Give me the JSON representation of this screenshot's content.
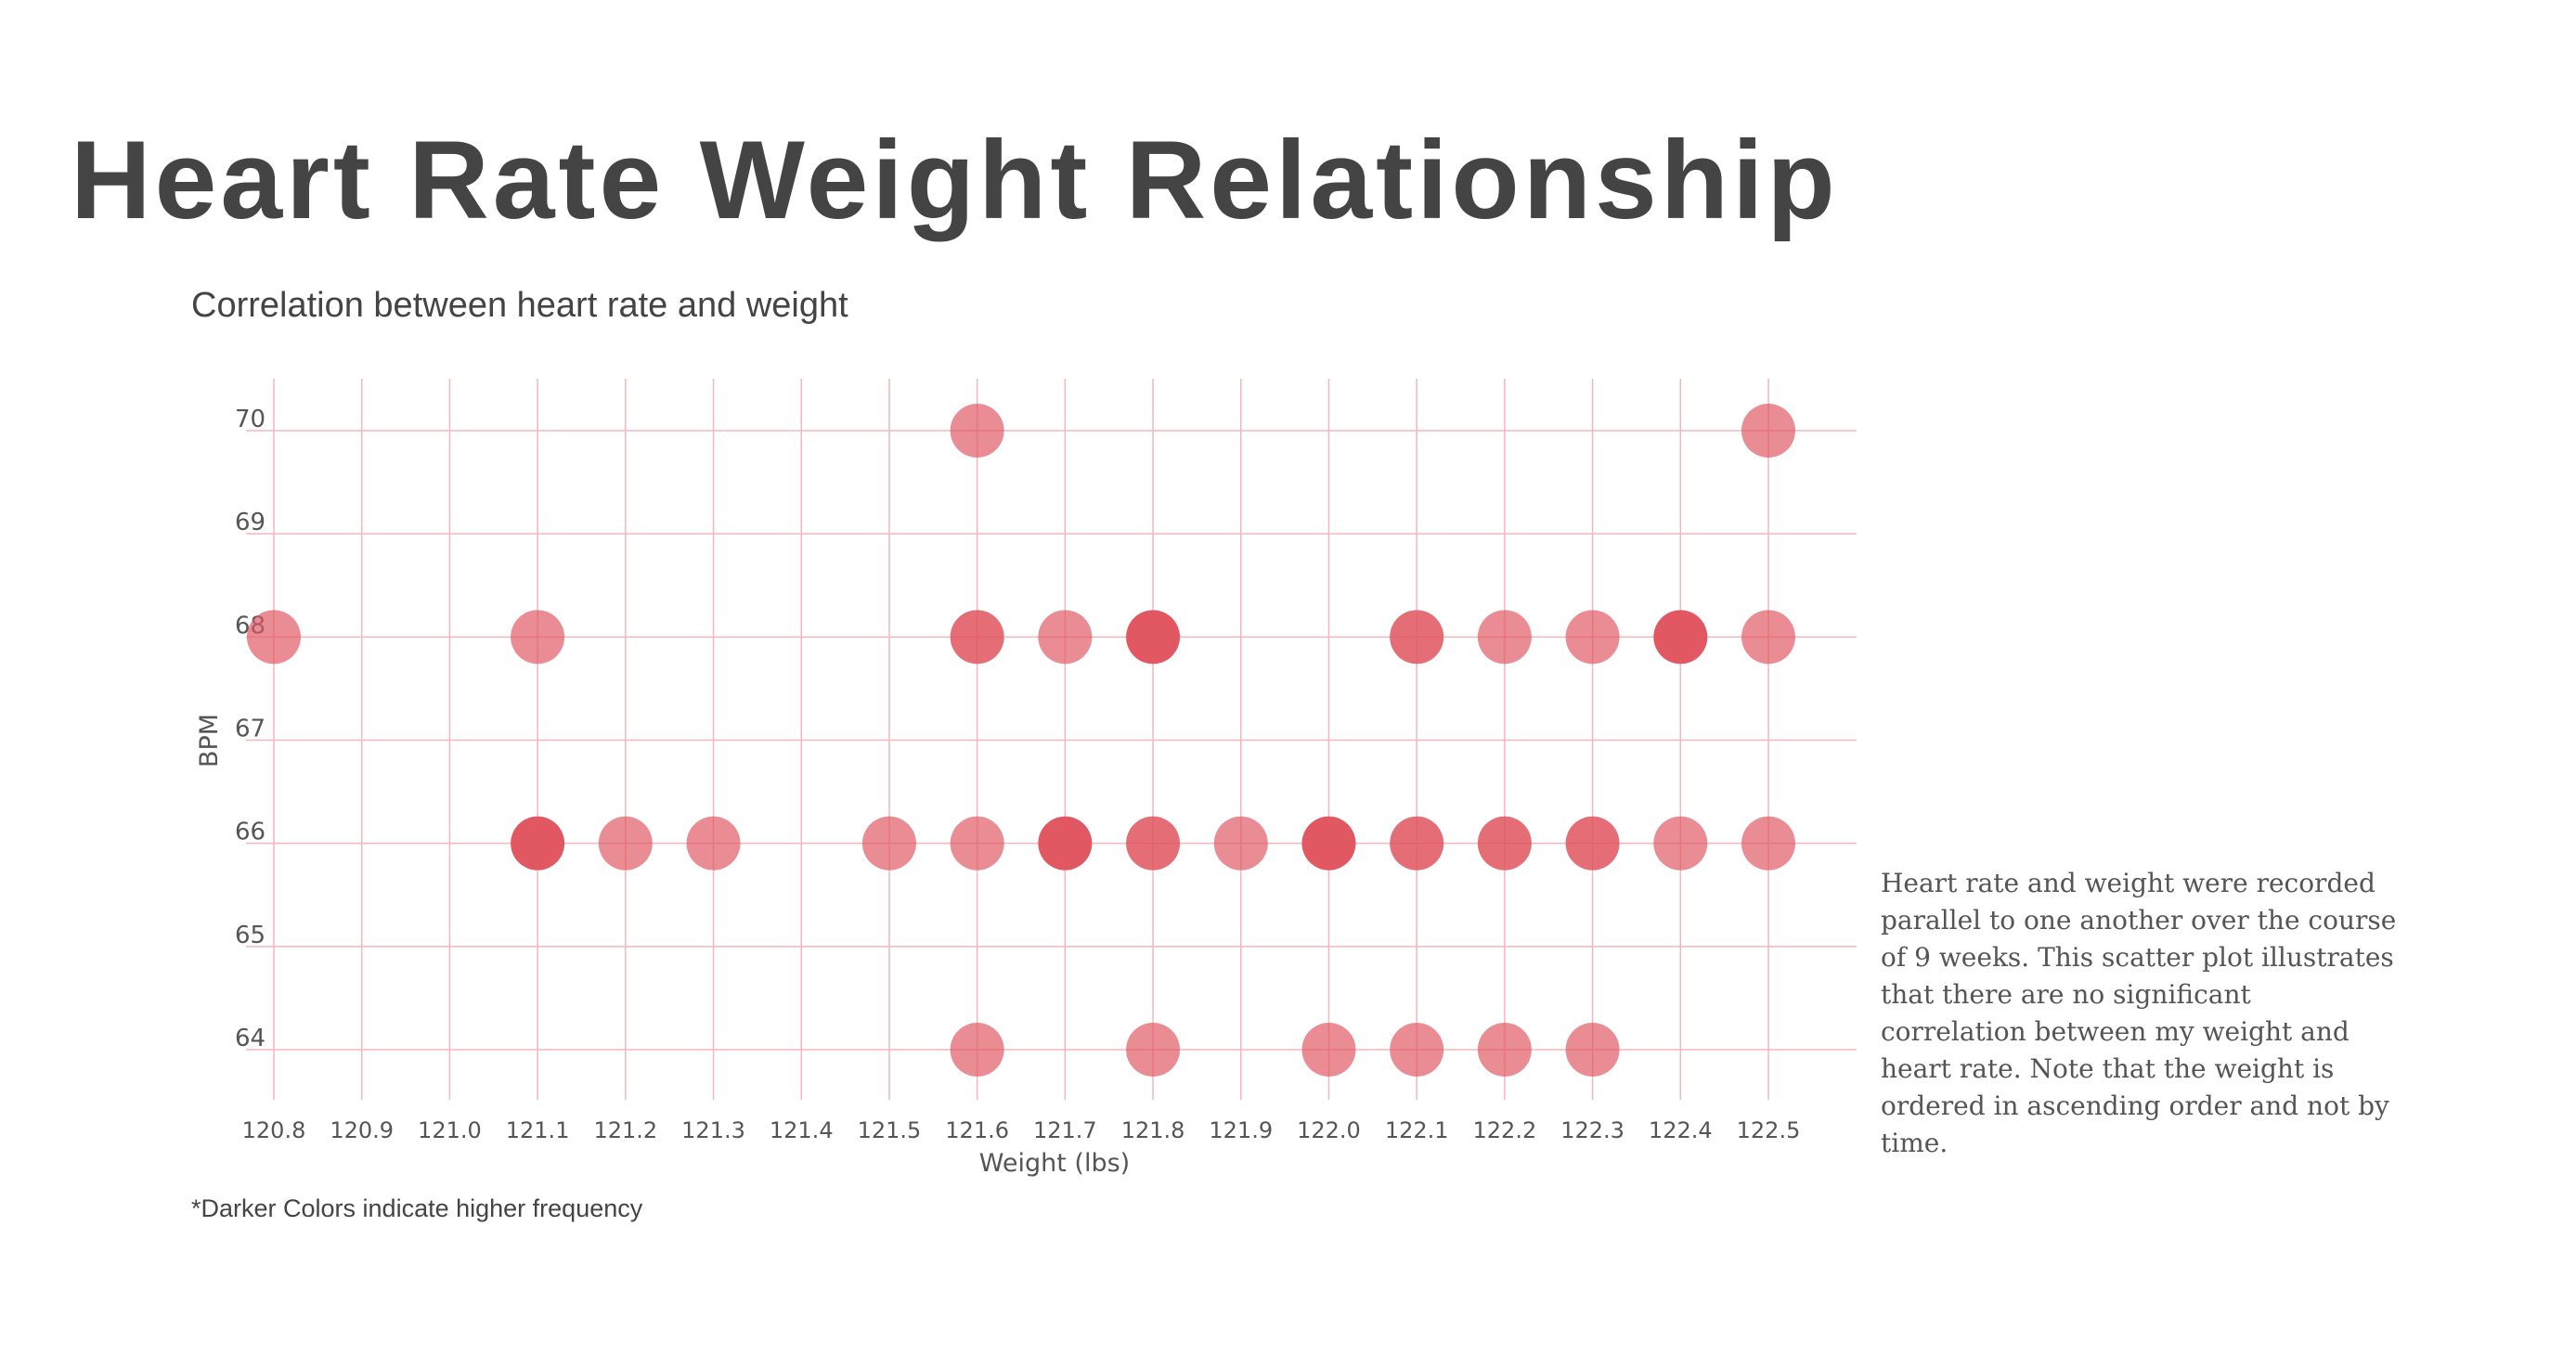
{
  "header": {
    "title": "Heart Rate Weight Relationship",
    "subtitle": "Correlation between heart rate and weight"
  },
  "footnote": "*Darker Colors indicate higher frequency",
  "description": "Heart rate and weight were recorded parallel to one another over the course of 9 weeks. This scatter plot illustrates that there are no significant correlation between my weight and heart rate. Note that the weight is ordered in ascending order and not by time.",
  "colors": {
    "point": "#e05560",
    "grid": "#f2b8bc"
  },
  "chart_data": {
    "type": "scatter",
    "title": "Heart Rate Weight Relationship",
    "subtitle": "Correlation between heart rate and weight",
    "xlabel": "Weight (lbs)",
    "ylabel": "BPM",
    "xlim": [
      120.8,
      122.5
    ],
    "ylim": [
      64,
      70
    ],
    "x_ticks": [
      "120.8",
      "120.9",
      "121.0",
      "121.1",
      "121.2",
      "121.3",
      "121.4",
      "121.5",
      "121.6",
      "121.7",
      "121.8",
      "121.9",
      "122.0",
      "122.1",
      "122.2",
      "122.3",
      "122.4",
      "122.5"
    ],
    "y_ticks": [
      "64",
      "65",
      "66",
      "67",
      "68",
      "69",
      "70"
    ],
    "grid": true,
    "encoding": "opacity indicates frequency",
    "points": [
      {
        "x": 121.6,
        "y": 70,
        "count": 1
      },
      {
        "x": 122.5,
        "y": 70,
        "count": 1
      },
      {
        "x": 120.8,
        "y": 68,
        "count": 1
      },
      {
        "x": 121.1,
        "y": 68,
        "count": 1
      },
      {
        "x": 121.6,
        "y": 68,
        "count": 2
      },
      {
        "x": 121.7,
        "y": 68,
        "count": 1
      },
      {
        "x": 121.8,
        "y": 68,
        "count": 3
      },
      {
        "x": 122.1,
        "y": 68,
        "count": 2
      },
      {
        "x": 122.2,
        "y": 68,
        "count": 1
      },
      {
        "x": 122.3,
        "y": 68,
        "count": 1
      },
      {
        "x": 122.4,
        "y": 68,
        "count": 3
      },
      {
        "x": 122.5,
        "y": 68,
        "count": 1
      },
      {
        "x": 121.1,
        "y": 66,
        "count": 3
      },
      {
        "x": 121.2,
        "y": 66,
        "count": 1
      },
      {
        "x": 121.3,
        "y": 66,
        "count": 1
      },
      {
        "x": 121.5,
        "y": 66,
        "count": 1
      },
      {
        "x": 121.6,
        "y": 66,
        "count": 1
      },
      {
        "x": 121.7,
        "y": 66,
        "count": 3
      },
      {
        "x": 121.8,
        "y": 66,
        "count": 2
      },
      {
        "x": 121.9,
        "y": 66,
        "count": 1
      },
      {
        "x": 122.0,
        "y": 66,
        "count": 3
      },
      {
        "x": 122.1,
        "y": 66,
        "count": 2
      },
      {
        "x": 122.2,
        "y": 66,
        "count": 2
      },
      {
        "x": 122.3,
        "y": 66,
        "count": 2
      },
      {
        "x": 122.4,
        "y": 66,
        "count": 1
      },
      {
        "x": 122.5,
        "y": 66,
        "count": 1
      },
      {
        "x": 121.6,
        "y": 64,
        "count": 1
      },
      {
        "x": 121.8,
        "y": 64,
        "count": 1
      },
      {
        "x": 122.0,
        "y": 64,
        "count": 1
      },
      {
        "x": 122.1,
        "y": 64,
        "count": 1
      },
      {
        "x": 122.2,
        "y": 64,
        "count": 1
      },
      {
        "x": 122.3,
        "y": 64,
        "count": 1
      }
    ]
  }
}
